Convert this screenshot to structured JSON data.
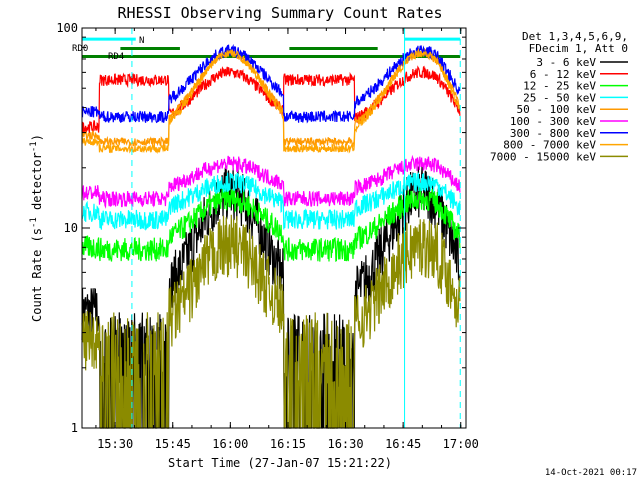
{
  "chart_data": {
    "type": "line",
    "title": "RHESSI Observing Summary Count Rates",
    "xlabel": "Start Time (27-Jan-07 15:21:22)",
    "ylabel": "Count Rate (s",
    "ylabel_sup1": "-1",
    "ylabel_mid": " detector",
    "ylabel_sup2": "-1",
    "ylabel_end": ")",
    "y_scale": "log",
    "ylim": [
      1,
      100
    ],
    "xlim_minutes": [
      0,
      100
    ],
    "x_ticks": [
      {
        "minutes": 8.63,
        "label": "15:30"
      },
      {
        "minutes": 23.63,
        "label": "15:45"
      },
      {
        "minutes": 38.63,
        "label": "16:00"
      },
      {
        "minutes": 53.63,
        "label": "16:15"
      },
      {
        "minutes": 68.63,
        "label": "16:30"
      },
      {
        "minutes": 83.63,
        "label": "16:45"
      },
      {
        "minutes": 98.63,
        "label": "17:00"
      }
    ],
    "y_ticks": [
      {
        "value": 1,
        "label": "1"
      },
      {
        "value": 10,
        "label": "10"
      },
      {
        "value": 100,
        "label": "100"
      }
    ],
    "legend_header": [
      "Det 1,3,4,5,6,9,",
      "FDecim 1, Att 0"
    ],
    "legend_placement": "right",
    "flag_labels": [
      "RD0",
      "RD4",
      "N"
    ],
    "footer_date": "14-Oct-2021 00:17",
    "series": [
      {
        "name": "3 - 6 keV",
        "color": "#000000",
        "low": 3.8,
        "high": 15,
        "occ": 0.3,
        "tail_peak": 15,
        "tail_end": 10,
        "noise": 0.14
      },
      {
        "name": "6 - 12 keV",
        "color": "#ff0000",
        "low": 32,
        "high": 60,
        "occ": 55,
        "tail_peak": 60,
        "tail_end": 45,
        "noise": 0.03
      },
      {
        "name": "12 - 25 keV",
        "color": "#00ff00",
        "low": 8.0,
        "high": 14,
        "occ": 7.8,
        "tail_peak": 14,
        "tail_end": 10,
        "noise": 0.06
      },
      {
        "name": "25 - 50 keV",
        "color": "#00ffff",
        "low": 12,
        "high": 17,
        "occ": 11,
        "tail_peak": 17,
        "tail_end": 13,
        "noise": 0.05
      },
      {
        "name": "50 - 100 keV",
        "color": "#ff9900",
        "low": 29,
        "high": 75,
        "occ": 27,
        "tail_peak": 78,
        "tail_end": 58,
        "noise": 0.02
      },
      {
        "name": "100 - 300 keV",
        "color": "#ff00ff",
        "low": 15,
        "high": 21,
        "occ": 14,
        "tail_peak": 21,
        "tail_end": 17,
        "noise": 0.04
      },
      {
        "name": "300 - 800 keV",
        "color": "#0000ff",
        "low": 38,
        "high": 77,
        "occ": 36,
        "tail_peak": 80,
        "tail_end": 60,
        "noise": 0.03
      },
      {
        "name": "800 - 7000 keV",
        "color": "#ffa500",
        "low": 27,
        "high": 75,
        "occ": 25,
        "tail_peak": 78,
        "tail_end": 55,
        "noise": 0.02
      },
      {
        "name": "7000 - 15000 keV",
        "color": "#8b8b00",
        "low": 2.8,
        "high": 8.2,
        "occ": 0.3,
        "tail_peak": 8.2,
        "tail_end": 5.5,
        "noise": 0.16
      }
    ],
    "night_intervals_minutes": [
      [
        4.5,
        22.6
      ],
      [
        52.5,
        71.0
      ]
    ],
    "peaks_minutes": [
      38.5,
      88.5
    ],
    "peak_width_minutes": 9.0,
    "cyan_vlines_minutes": [
      0,
      84.0
    ],
    "cyan_dashed_vlines_minutes": [
      13.0,
      98.5
    ],
    "flag_bars": [
      {
        "label": "RD0",
        "color": "#008000",
        "value": 72,
        "x0": 0,
        "x1": 98.5
      },
      {
        "label": "RD4",
        "color": "#008000",
        "value": 79,
        "x0": 10.0,
        "x1": 25.5
      },
      {
        "label": "RD4b",
        "color": "#008000",
        "value": 79,
        "x0": 54.0,
        "x1": 77.0
      },
      {
        "label": "N",
        "color": "#00ffff",
        "value": 88,
        "x0": 0,
        "x1": 14.0
      },
      {
        "label": "N2",
        "color": "#00ffff",
        "value": 88,
        "x0": 84.0,
        "x1": 98.5
      }
    ]
  }
}
